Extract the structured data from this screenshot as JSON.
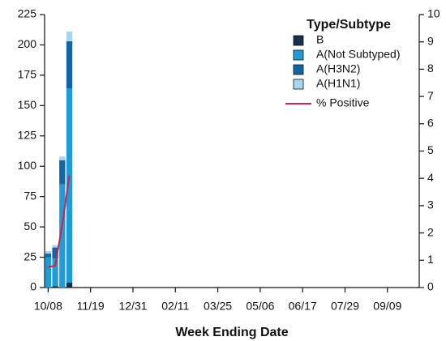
{
  "chart_data": {
    "type": "stacked-bar-line",
    "x_label": "Week Ending Date",
    "legend_title": "Type/Subtype",
    "legend": "top-right",
    "categories": [
      "10/08",
      null,
      null,
      null,
      null,
      null,
      "11/19",
      null,
      null,
      null,
      null,
      null,
      "12/31",
      null,
      null,
      null,
      null,
      null,
      "02/11",
      null,
      null,
      null,
      null,
      null,
      "03/25",
      null,
      null,
      null,
      null,
      null,
      "05/06",
      null,
      null,
      null,
      null,
      null,
      "06/17",
      null,
      null,
      null,
      null,
      null,
      "07/29",
      null,
      null,
      null,
      null,
      null,
      "09/09",
      null,
      null,
      null,
      null
    ],
    "ylim": [
      0,
      225
    ],
    "yticks": [
      0,
      25,
      50,
      75,
      100,
      125,
      150,
      175,
      200,
      225
    ],
    "y2lim": [
      0,
      10
    ],
    "y2ticks": [
      0,
      1,
      2,
      3,
      4,
      5,
      6,
      7,
      8,
      9,
      10
    ],
    "series": [
      {
        "name": "B",
        "color": "#17304f",
        "values": [
          0,
          1,
          0,
          4,
          null,
          null,
          null,
          null,
          null,
          null,
          null,
          null,
          null,
          null,
          null,
          null,
          null,
          null,
          null,
          null,
          null,
          null,
          null,
          null,
          null,
          null,
          null,
          null,
          null,
          null,
          null,
          null,
          null,
          null,
          null,
          null,
          null,
          null,
          null,
          null,
          null,
          null,
          null,
          null,
          null,
          null,
          null,
          null,
          null,
          null,
          null,
          null,
          null
        ]
      },
      {
        "name": "A(Not Subtyped)",
        "color": "#1f9bd7",
        "values": [
          25,
          23,
          85,
          160,
          null,
          null,
          null,
          null,
          null,
          null,
          null,
          null,
          null,
          null,
          null,
          null,
          null,
          null,
          null,
          null,
          null,
          null,
          null,
          null,
          null,
          null,
          null,
          null,
          null,
          null,
          null,
          null,
          null,
          null,
          null,
          null,
          null,
          null,
          null,
          null,
          null,
          null,
          null,
          null,
          null,
          null,
          null,
          null,
          null,
          null,
          null,
          null,
          null
        ]
      },
      {
        "name": "A(H3N2)",
        "color": "#1565a6",
        "values": [
          3,
          9,
          20,
          39,
          null,
          null,
          null,
          null,
          null,
          null,
          null,
          null,
          null,
          null,
          null,
          null,
          null,
          null,
          null,
          null,
          null,
          null,
          null,
          null,
          null,
          null,
          null,
          null,
          null,
          null,
          null,
          null,
          null,
          null,
          null,
          null,
          null,
          null,
          null,
          null,
          null,
          null,
          null,
          null,
          null,
          null,
          null,
          null,
          null,
          null,
          null,
          null,
          null
        ]
      },
      {
        "name": "A(H1N1)",
        "color": "#a8d6f0",
        "values": [
          2,
          2,
          3,
          8,
          null,
          null,
          null,
          null,
          null,
          null,
          null,
          null,
          null,
          null,
          null,
          null,
          null,
          null,
          null,
          null,
          null,
          null,
          null,
          null,
          null,
          null,
          null,
          null,
          null,
          null,
          null,
          null,
          null,
          null,
          null,
          null,
          null,
          null,
          null,
          null,
          null,
          null,
          null,
          null,
          null,
          null,
          null,
          null,
          null,
          null,
          null,
          null,
          null
        ]
      },
      {
        "name": "% Positive",
        "color": "#d6204a",
        "axis": "y2",
        "type": "line",
        "values": [
          0.75,
          0.8,
          2.3,
          4.1,
          null,
          null,
          null,
          null,
          null,
          null,
          null,
          null,
          null,
          null,
          null,
          null,
          null,
          null,
          null,
          null,
          null,
          null,
          null,
          null,
          null,
          null,
          null,
          null,
          null,
          null,
          null,
          null,
          null,
          null,
          null,
          null,
          null,
          null,
          null,
          null,
          null,
          null,
          null,
          null,
          null,
          null,
          null,
          null,
          null,
          null,
          null,
          null,
          null
        ]
      }
    ]
  }
}
